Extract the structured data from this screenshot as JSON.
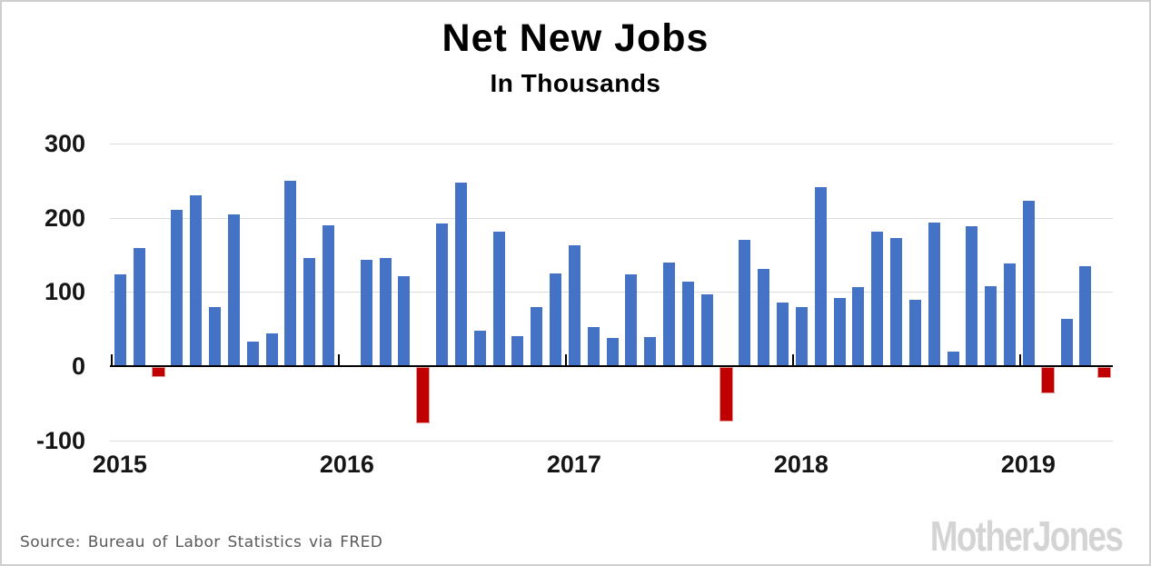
{
  "header": {
    "title": "Net New Jobs",
    "subtitle": "In Thousands"
  },
  "footer": {
    "source": "Source: Bureau of Labor Statistics via FRED",
    "logo": "MotherJones"
  },
  "chart_data": {
    "type": "bar",
    "title": "Net New Jobs",
    "subtitle": "In Thousands",
    "unit": "thousands of jobs per month",
    "ylim": [
      -100,
      300
    ],
    "yticks": [
      300,
      200,
      100,
      0,
      -100
    ],
    "year_labels": [
      "2015",
      "2016",
      "2017",
      "2018",
      "2019"
    ],
    "grid": true,
    "legend": false,
    "positive_color": "#4472C4",
    "negative_color": "#C00000",
    "negative_border_color": "#E59A9A",
    "series": [
      {
        "month": "Jan 2015",
        "value": 122
      },
      {
        "month": "Feb 2015",
        "value": 158
      },
      {
        "month": "Mar 2015",
        "value": -14
      },
      {
        "month": "Apr 2015",
        "value": 209
      },
      {
        "month": "May 2015",
        "value": 229
      },
      {
        "month": "Jun 2015",
        "value": 79
      },
      {
        "month": "Jul 2015",
        "value": 203
      },
      {
        "month": "Aug 2015",
        "value": 32
      },
      {
        "month": "Sep 2015",
        "value": 43
      },
      {
        "month": "Oct 2015",
        "value": 249
      },
      {
        "month": "Nov 2015",
        "value": 144
      },
      {
        "month": "Dec 2015",
        "value": 189
      },
      {
        "month": "Jan 2016",
        "value": 0
      },
      {
        "month": "Feb 2016",
        "value": 142
      },
      {
        "month": "Mar 2016",
        "value": 145
      },
      {
        "month": "Apr 2016",
        "value": 120
      },
      {
        "month": "May 2016",
        "value": -76
      },
      {
        "month": "Jun 2016",
        "value": 191
      },
      {
        "month": "Jul 2016",
        "value": 246
      },
      {
        "month": "Aug 2016",
        "value": 46
      },
      {
        "month": "Sep 2016",
        "value": 180
      },
      {
        "month": "Oct 2016",
        "value": 39
      },
      {
        "month": "Nov 2016",
        "value": 79
      },
      {
        "month": "Dec 2016",
        "value": 124
      },
      {
        "month": "Jan 2017",
        "value": 162
      },
      {
        "month": "Feb 2017",
        "value": 52
      },
      {
        "month": "Mar 2017",
        "value": 37
      },
      {
        "month": "Apr 2017",
        "value": 122
      },
      {
        "month": "May 2017",
        "value": 38
      },
      {
        "month": "Jun 2017",
        "value": 138
      },
      {
        "month": "Jul 2017",
        "value": 113
      },
      {
        "month": "Aug 2017",
        "value": 96
      },
      {
        "month": "Sep 2017",
        "value": -73
      },
      {
        "month": "Oct 2017",
        "value": 169
      },
      {
        "month": "Nov 2017",
        "value": 130
      },
      {
        "month": "Dec 2017",
        "value": 84
      },
      {
        "month": "Jan 2018",
        "value": 79
      },
      {
        "month": "Feb 2018",
        "value": 240
      },
      {
        "month": "Mar 2018",
        "value": 91
      },
      {
        "month": "Apr 2018",
        "value": 106
      },
      {
        "month": "May 2018",
        "value": 180
      },
      {
        "month": "Jun 2018",
        "value": 171
      },
      {
        "month": "Jul 2018",
        "value": 88
      },
      {
        "month": "Aug 2018",
        "value": 192
      },
      {
        "month": "Sep 2018",
        "value": 18
      },
      {
        "month": "Oct 2018",
        "value": 188
      },
      {
        "month": "Nov 2018",
        "value": 107
      },
      {
        "month": "Dec 2018",
        "value": 137
      },
      {
        "month": "Jan 2019",
        "value": 222
      },
      {
        "month": "Feb 2019",
        "value": -35
      },
      {
        "month": "Mar 2019",
        "value": 63
      },
      {
        "month": "Apr 2019",
        "value": 133
      },
      {
        "month": "May 2019",
        "value": -15
      }
    ]
  }
}
